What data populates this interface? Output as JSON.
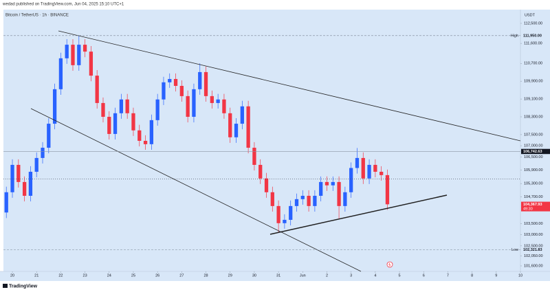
{
  "header": {
    "byline": "wedad published on TradingView.com, Jun 04, 2025 15:10 UTC+1"
  },
  "logo": "TradingView",
  "chart_data": {
    "type": "candlestick",
    "title": "Bitcoin / TetherUS · 1h · BINANCE",
    "currency": "USDT",
    "up_color": "#2962ff",
    "down_color": "#f23645",
    "background": "#d8e7f8",
    "grid": false,
    "xlim": [
      -0.37,
      21.0
    ],
    "ylim": [
      101353,
      112932
    ],
    "xticks": [
      {
        "value": 0,
        "label": "20"
      },
      {
        "value": 1,
        "label": "21"
      },
      {
        "value": 2,
        "label": "22"
      },
      {
        "value": 3,
        "label": "23"
      },
      {
        "value": 4,
        "label": "24"
      },
      {
        "value": 5,
        "label": "25"
      },
      {
        "value": 6,
        "label": "26"
      },
      {
        "value": 7,
        "label": "27"
      },
      {
        "value": 8,
        "label": "28"
      },
      {
        "value": 9,
        "label": "29"
      },
      {
        "value": 10,
        "label": "30"
      },
      {
        "value": 11,
        "label": "31"
      },
      {
        "value": 12,
        "label": "Jun"
      },
      {
        "value": 13,
        "label": "2"
      },
      {
        "value": 14,
        "label": "3"
      },
      {
        "value": 15,
        "label": "4"
      },
      {
        "value": 16,
        "label": "5"
      },
      {
        "value": 17,
        "label": "6"
      },
      {
        "value": 18,
        "label": "7"
      },
      {
        "value": 19,
        "label": "8"
      },
      {
        "value": 20,
        "label": "9"
      },
      {
        "value": 21,
        "label": "10"
      }
    ],
    "yticks": [
      {
        "value": 112500,
        "label": "112,500.00"
      },
      {
        "value": 111600,
        "label": "111,600.00"
      },
      {
        "value": 110700,
        "label": "110,700.00"
      },
      {
        "value": 109900,
        "label": "109,900.00"
      },
      {
        "value": 109100,
        "label": "109,100.00"
      },
      {
        "value": 108300,
        "label": "108,300.00"
      },
      {
        "value": 107500,
        "label": "107,500.00"
      },
      {
        "value": 107000,
        "label": "107,000.00"
      },
      {
        "value": 106500,
        "label": "106,500.00"
      },
      {
        "value": 105900,
        "label": "105,900.00"
      },
      {
        "value": 105300,
        "label": "105,300.00"
      },
      {
        "value": 104700,
        "label": "104,700.00"
      },
      {
        "value": 103500,
        "label": "103,500.00"
      },
      {
        "value": 103000,
        "label": "103,000.00"
      },
      {
        "value": 102500,
        "label": "102,500.00"
      },
      {
        "value": 102050,
        "label": "102,050.00"
      },
      {
        "value": 101600,
        "label": "101,600.00"
      }
    ],
    "markers": [
      {
        "value": 111950,
        "label": "111,950.00",
        "tag": "High",
        "style": "high"
      },
      {
        "value": 106742.63,
        "label": "106,742.63",
        "style": "last"
      },
      {
        "value": 105500,
        "style": "dotted"
      },
      {
        "value": 104367.93,
        "label": "104,367.93",
        "countdown": "49:30",
        "style": "current"
      },
      {
        "value": 102321.83,
        "label": "102,321.83",
        "tag": "Low",
        "style": "low"
      }
    ],
    "x": [
      -0.25,
      0,
      0.25,
      0.5,
      0.75,
      1,
      1.25,
      1.5,
      1.75,
      2,
      2.25,
      2.5,
      2.75,
      3,
      3.25,
      3.5,
      3.75,
      4,
      4.25,
      4.5,
      4.75,
      5,
      5.25,
      5.5,
      5.75,
      6,
      6.25,
      6.5,
      6.75,
      7,
      7.25,
      7.5,
      7.75,
      8,
      8.25,
      8.5,
      8.75,
      9,
      9.25,
      9.5,
      9.75,
      10,
      10.25,
      10.5,
      10.75,
      11,
      11.25,
      11.5,
      11.75,
      12,
      12.25,
      12.5,
      12.75,
      13,
      13.25,
      13.5,
      13.75,
      14,
      14.25,
      14.5,
      14.75,
      15,
      15.25,
      15.5
    ],
    "open": [
      104000,
      104910,
      106140,
      105370,
      104750,
      105830,
      106450,
      106910,
      107990,
      109540,
      110930,
      111540,
      110620,
      111540,
      111230,
      110150,
      108920,
      108300,
      107530,
      108460,
      109080,
      108460,
      107690,
      107220,
      107070,
      108150,
      109080,
      109850,
      110000,
      109690,
      109230,
      108300,
      109540,
      110310,
      109230,
      108920,
      109080,
      108460,
      107380,
      107990,
      108770,
      106910,
      106140,
      105530,
      104910,
      104290,
      103520,
      103670,
      104290,
      104600,
      104750,
      104290,
      104750,
      105370,
      105220,
      105370,
      104290,
      104910,
      106000,
      106450,
      105530,
      106140,
      105830,
      105680
    ],
    "high": [
      105160,
      106390,
      106390,
      105620,
      106080,
      106700,
      107160,
      108240,
      109790,
      111180,
      111790,
      111790,
      111950,
      111790,
      111480,
      110400,
      109170,
      108550,
      108710,
      109330,
      109330,
      108710,
      107940,
      107470,
      108400,
      109330,
      110100,
      110250,
      110250,
      109940,
      109480,
      109790,
      110700,
      110560,
      109480,
      109330,
      109330,
      108710,
      108240,
      109020,
      109020,
      107160,
      106390,
      105780,
      105160,
      104540,
      103920,
      104540,
      104850,
      105000,
      105000,
      105000,
      105620,
      105620,
      105620,
      105620,
      105160,
      106250,
      106900,
      106700,
      106390,
      106390,
      106080,
      105930
    ],
    "low": [
      103750,
      104660,
      105120,
      104500,
      104500,
      105580,
      106200,
      106660,
      107740,
      109290,
      110680,
      110370,
      110370,
      110980,
      109900,
      108670,
      108050,
      107280,
      107280,
      108210,
      108210,
      107440,
      106970,
      106820,
      106820,
      107900,
      108830,
      109600,
      109440,
      108980,
      108050,
      108050,
      109290,
      108980,
      108670,
      108670,
      108210,
      107130,
      107130,
      107740,
      106660,
      105890,
      105280,
      104660,
      104040,
      103100,
      103270,
      103420,
      104040,
      104350,
      104040,
      104040,
      104500,
      104970,
      104970,
      103700,
      104040,
      104660,
      105750,
      105280,
      105280,
      105580,
      105430,
      104118
    ],
    "close": [
      104910,
      106140,
      105370,
      104750,
      105830,
      106450,
      106910,
      107990,
      109540,
      110930,
      111540,
      110620,
      111540,
      111230,
      110150,
      108920,
      108300,
      107530,
      108460,
      109080,
      108460,
      107690,
      107220,
      107070,
      108150,
      109080,
      109850,
      110000,
      109690,
      109230,
      108300,
      109540,
      110310,
      109230,
      108920,
      109080,
      108460,
      107380,
      107990,
      108770,
      106910,
      106140,
      105530,
      104910,
      104290,
      103520,
      103670,
      104290,
      104600,
      104750,
      104290,
      104750,
      105370,
      105220,
      105370,
      104290,
      104910,
      106000,
      106450,
      105530,
      106140,
      105830,
      105680,
      104367.93
    ]
  }
}
